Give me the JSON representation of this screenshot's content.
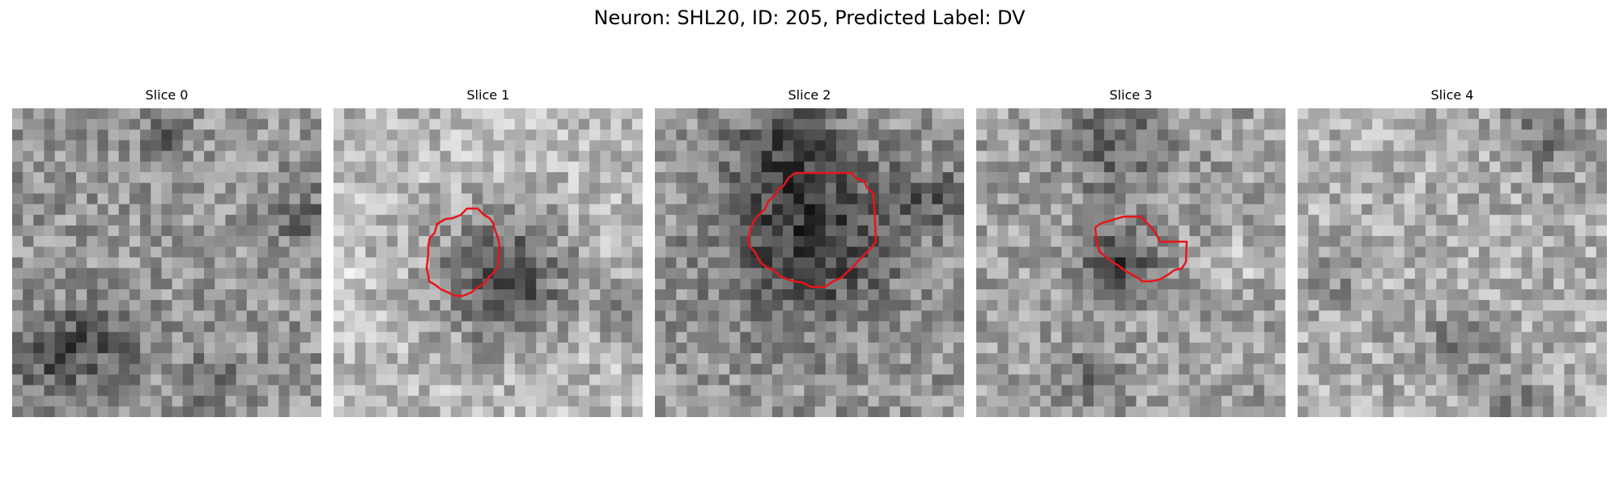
{
  "figure": {
    "title": "Neuron: SHL20, ID: 205, Predicted Label: DV"
  },
  "colors": {
    "contour": "#e8141a",
    "background": "#ffffff"
  },
  "panels": [
    {
      "label": "Slice 0",
      "has_contour": false
    },
    {
      "label": "Slice 1",
      "has_contour": true
    },
    {
      "label": "Slice 2",
      "has_contour": true
    },
    {
      "label": "Slice 3",
      "has_contour": true
    },
    {
      "label": "Slice 4",
      "has_contour": false
    }
  ]
}
